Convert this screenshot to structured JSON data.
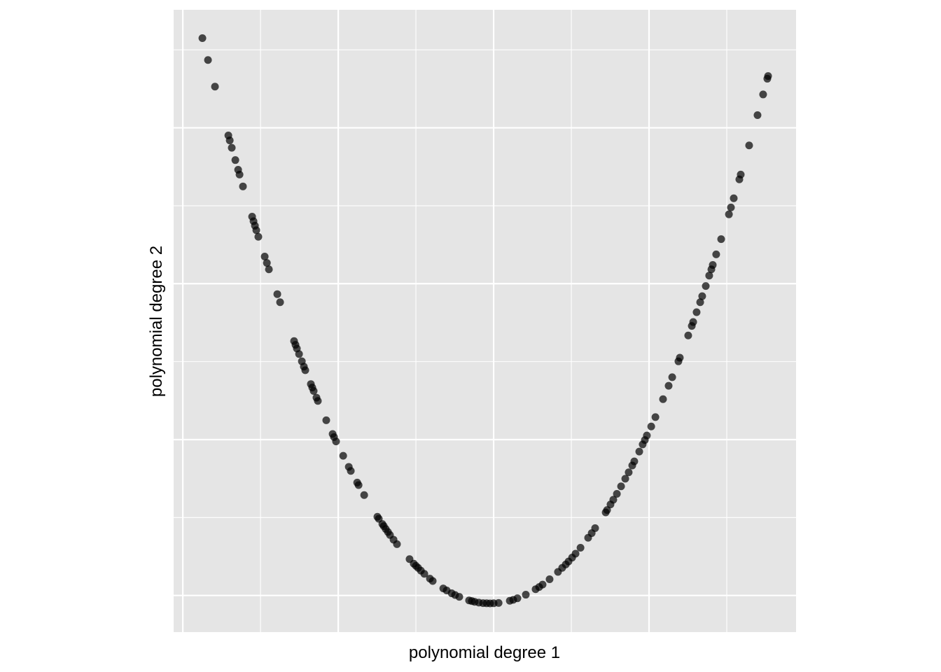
{
  "chart_data": {
    "type": "scatter",
    "x_label": "polynomial degree 1",
    "y_label": "polynomial degree 2",
    "xlim": [
      -0.2059,
      0.1946
    ],
    "ylim": [
      -0.1235,
      0.2757
    ],
    "xticks": [
      -0.2,
      -0.1,
      0,
      0.1
    ],
    "xminor_ticks": [
      -0.15,
      -0.05,
      0.05,
      0.15
    ],
    "yticks": [
      -0.1,
      0,
      0.1,
      0.2
    ],
    "yminor_ticks": [
      -0.05,
      0.05,
      0.15,
      0.25
    ],
    "grid": true,
    "color": "#000000",
    "opacity": 0.7,
    "x": [
      -0.1874,
      -0.1838,
      -0.1793,
      -0.1707,
      -0.1698,
      -0.1685,
      -0.1662,
      -0.1644,
      -0.1635,
      -0.1613,
      -0.1554,
      -0.1545,
      -0.1536,
      -0.1527,
      -0.1514,
      -0.1473,
      -0.1459,
      -0.1446,
      -0.1392,
      -0.1374,
      -0.1284,
      -0.1275,
      -0.1266,
      -0.1252,
      -0.1234,
      -0.1221,
      -0.1212,
      -0.1176,
      -0.1167,
      -0.1158,
      -0.114,
      -0.1131,
      -0.1077,
      -0.1036,
      -0.1027,
      -0.1014,
      -0.0968,
      -0.0932,
      -0.0919,
      -0.0878,
      -0.0869,
      -0.0833,
      -0.0748,
      -0.0739,
      -0.0716,
      -0.0707,
      -0.0694,
      -0.068,
      -0.0667,
      -0.0644,
      -0.0622,
      -0.0541,
      -0.0514,
      -0.05,
      -0.0486,
      -0.0468,
      -0.0446,
      -0.041,
      -0.0392,
      -0.0324,
      -0.0302,
      -0.027,
      -0.0248,
      -0.0221,
      -0.0158,
      -0.014,
      -0.0122,
      -0.0095,
      -0.0068,
      -0.0045,
      -0.0023,
      0,
      0.0032,
      0.0104,
      0.0126,
      0.0153,
      0.0207,
      0.027,
      0.0293,
      0.0315,
      0.036,
      0.0414,
      0.0441,
      0.0464,
      0.0482,
      0.0505,
      0.0527,
      0.0559,
      0.0608,
      0.0631,
      0.0653,
      0.0721,
      0.073,
      0.0752,
      0.077,
      0.0793,
      0.082,
      0.0847,
      0.0869,
      0.0892,
      0.0905,
      0.0937,
      0.0959,
      0.0973,
      0.0986,
      0.1014,
      0.1041,
      0.109,
      0.1126,
      0.1149,
      0.1189,
      0.1198,
      0.1252,
      0.1275,
      0.1284,
      0.1306,
      0.1329,
      0.1342,
      0.1365,
      0.1387,
      0.1401,
      0.141,
      0.1432,
      0.1464,
      0.1514,
      0.1527,
      0.1545,
      0.1581,
      0.159,
      0.1644,
      0.1698,
      0.1734,
      0.1761,
      0.1766
    ],
    "values": [
      0.2575,
      0.2435,
      0.2264,
      0.1951,
      0.1919,
      0.1872,
      0.1793,
      0.1731,
      0.17,
      0.1624,
      0.143,
      0.1401,
      0.1372,
      0.1343,
      0.1301,
      0.1174,
      0.1133,
      0.1092,
      0.0933,
      0.0881,
      0.0632,
      0.0608,
      0.0584,
      0.0549,
      0.0502,
      0.0468,
      0.0445,
      0.0356,
      0.0334,
      0.0312,
      0.0269,
      0.0248,
      0.0124,
      0.0036,
      0.0016,
      -0.0012,
      -0.0104,
      -0.0175,
      -0.0201,
      -0.0276,
      -0.0292,
      -0.0356,
      -0.0495,
      -0.0508,
      -0.0542,
      -0.0555,
      -0.0574,
      -0.0593,
      -0.0612,
      -0.0642,
      -0.0671,
      -0.0767,
      -0.0796,
      -0.081,
      -0.0823,
      -0.0841,
      -0.0861,
      -0.0892,
      -0.0907,
      -0.0955,
      -0.0968,
      -0.0986,
      -0.0997,
      -0.1009,
      -0.1032,
      -0.1036,
      -0.1041,
      -0.1046,
      -0.1049,
      -0.105,
      -0.1051,
      -0.105,
      -0.1048,
      -0.1034,
      -0.1028,
      -0.1018,
      -0.0995,
      -0.096,
      -0.0946,
      -0.093,
      -0.0896,
      -0.0849,
      -0.0823,
      -0.0801,
      -0.0782,
      -0.0757,
      -0.0732,
      -0.0694,
      -0.063,
      -0.06,
      -0.0568,
      -0.0467,
      -0.0452,
      -0.0416,
      -0.0386,
      -0.0348,
      -0.03,
      -0.0251,
      -0.021,
      -0.0166,
      -0.014,
      -0.0077,
      -0.0031,
      -0.0003,
      0.0026,
      0.0084,
      0.0144,
      0.0259,
      0.0345,
      0.04,
      0.0502,
      0.0525,
      0.0668,
      0.0729,
      0.0754,
      0.0817,
      0.0881,
      0.092,
      0.0985,
      0.1052,
      0.1092,
      0.112,
      0.1188,
      0.1286,
      0.1445,
      0.1489,
      0.1548,
      0.1669,
      0.17,
      0.1887,
      0.2081,
      0.2214,
      0.2315,
      0.2332
    ]
  }
}
